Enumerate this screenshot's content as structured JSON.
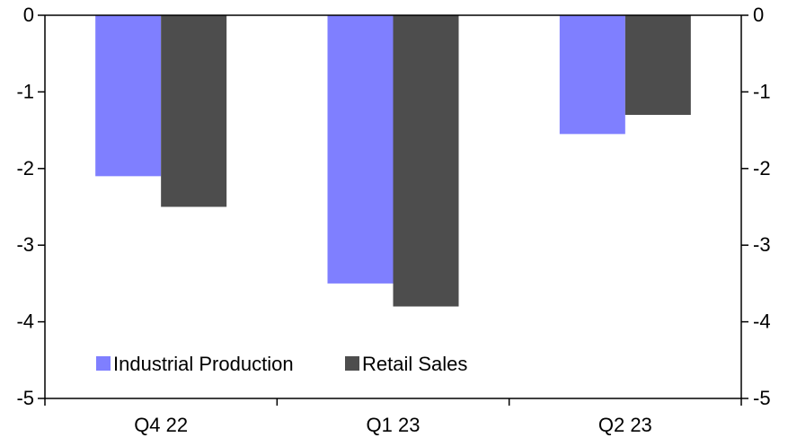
{
  "chart_data": {
    "type": "bar",
    "categories": [
      "Q4 22",
      "Q1 23",
      "Q2 23"
    ],
    "series": [
      {
        "name": "Industrial Production",
        "values": [
          -2.1,
          -3.5,
          -1.55
        ],
        "color": "#7f7fff"
      },
      {
        "name": "Retail Sales",
        "values": [
          -2.5,
          -3.8,
          -1.3
        ],
        "color": "#4d4d4d"
      }
    ],
    "ylim": [
      -5,
      0
    ],
    "yticks": [
      "0",
      "-1",
      "-2",
      "-3",
      "-4",
      "-5"
    ],
    "y_axis_both_sides": true,
    "grid": false,
    "legend_position": "bottom-left",
    "title": "",
    "xlabel": "",
    "ylabel": ""
  }
}
